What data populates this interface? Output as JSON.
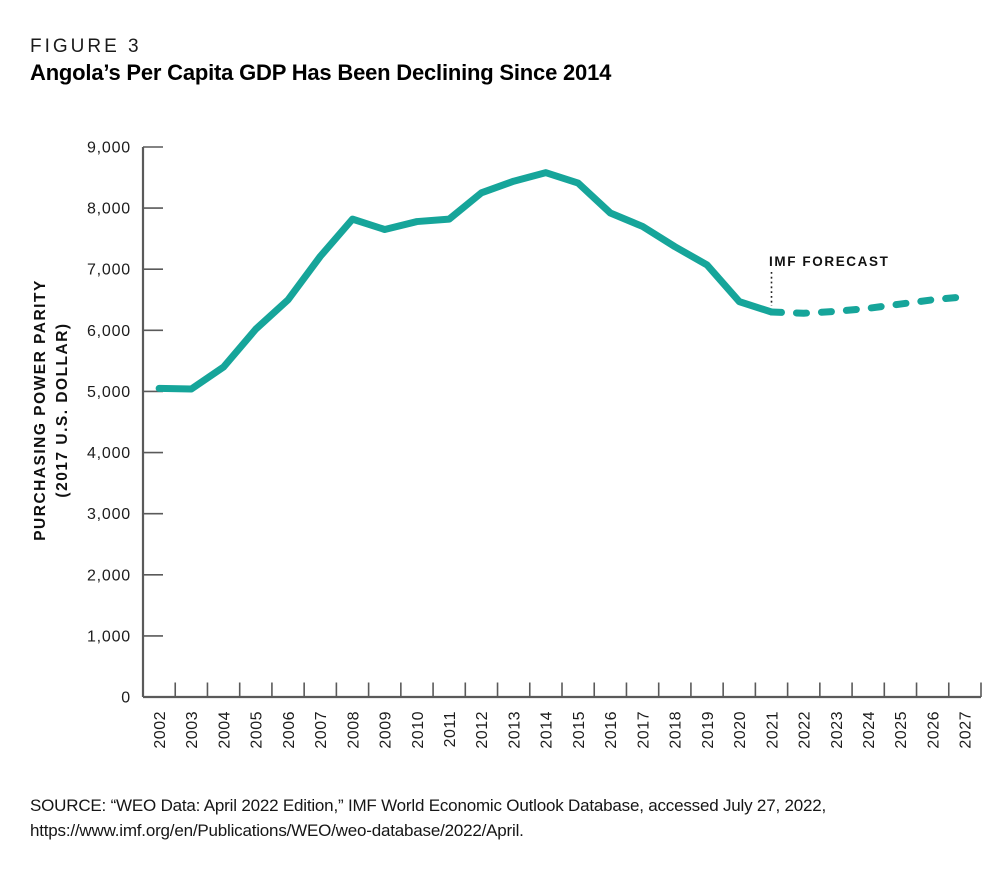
{
  "figure": {
    "label": "FIGURE 3",
    "title": "Angola’s Per Capita GDP Has Been Declining Since 2014"
  },
  "source": {
    "line1": "SOURCE: “WEO Data: April 2022 Edition,” IMF World Economic Outlook Database, accessed July 27, 2022,",
    "line2": "https://www.imf.org/en/Publications/WEO/weo-database/2022/April."
  },
  "chart_data": {
    "type": "line",
    "title": "Angola’s Per Capita GDP Has Been Declining Since 2014",
    "ylabel_line1": "PURCHASING POWER PARITY",
    "ylabel_line2": "(2017 U.S. DOLLAR)",
    "xlabel": "",
    "ylim": [
      0,
      9000
    ],
    "ytick_step": 1000,
    "grid": false,
    "legend": "none",
    "annotation": "IMF FORECAST",
    "forecast_from_year": 2021,
    "x": [
      2002,
      2003,
      2004,
      2005,
      2006,
      2007,
      2008,
      2009,
      2010,
      2011,
      2012,
      2013,
      2014,
      2015,
      2016,
      2017,
      2018,
      2019,
      2020,
      2021,
      2022,
      2023,
      2024,
      2025,
      2026,
      2027
    ],
    "series": [
      {
        "name": "GDP per capita, purchasing power parity (2017 U.S. dollar)",
        "values": [
          5050,
          5040,
          5400,
          6020,
          6500,
          7210,
          7820,
          7650,
          7780,
          7820,
          8250,
          8440,
          8580,
          8410,
          7920,
          7700,
          7370,
          7070,
          6470,
          6300,
          6280,
          6310,
          6360,
          6430,
          6500,
          6550
        ]
      }
    ],
    "colors": {
      "line": "#16A59A",
      "axis": "#5a5a5a",
      "tick_label": "#1c1c1c",
      "annotation": "#111111"
    }
  }
}
